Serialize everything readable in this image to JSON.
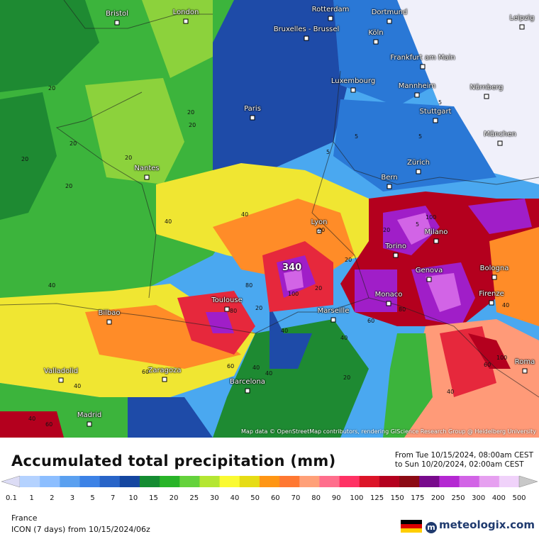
{
  "map": {
    "attribution": "Map data © OpenStreetMap contributors, rendering GIScience Research Group @ Heidelberg University",
    "cities": [
      "Bristol",
      "London",
      "Rotterdam",
      "Dortmund",
      "Leipzig",
      "Bruxelles - Brussel",
      "Köln",
      "Frankfurt am Main",
      "Luxembourg",
      "Mannheim",
      "Nürnberg",
      "Paris",
      "Stuttgart",
      "München",
      "Nantes",
      "Zürich",
      "Bern",
      "Lyon",
      "Milano",
      "Torino",
      "Genova",
      "Bologna",
      "Monaco",
      "Firenze",
      "Toulouse",
      "Marseille",
      "Bilbao",
      "Valladolid",
      "Zaragoza",
      "Barcelona",
      "Madrid",
      "Roma"
    ],
    "peak_label": "340",
    "contour_labels": [
      "20",
      "20",
      "20",
      "20",
      "20",
      "20",
      "20",
      "20",
      "20",
      "20",
      "40",
      "40",
      "40",
      "40",
      "40",
      "40",
      "40",
      "40",
      "40",
      "60",
      "60",
      "60",
      "60",
      "60",
      "80",
      "80",
      "80",
      "100",
      "100",
      "100",
      "5",
      "5",
      "5",
      "5",
      "5",
      "20",
      "40",
      "20",
      "20",
      "40"
    ]
  },
  "title": "Accumulated total precipitation (mm)",
  "period": {
    "from": "From Tue 10/15/2024, 08:00am CEST",
    "to": "to Sun 10/20/2024, 02:00am CEST"
  },
  "legend": {
    "ticks": [
      "0.1",
      "1",
      "2",
      "3",
      "5",
      "7",
      "10",
      "15",
      "20",
      "25",
      "30",
      "40",
      "50",
      "60",
      "70",
      "80",
      "90",
      "100",
      "125",
      "150",
      "175",
      "200",
      "250",
      "300",
      "400",
      "500"
    ],
    "colors": [
      "#dcdcf5",
      "#b4d2ff",
      "#8cbeff",
      "#5aa0f0",
      "#3c82e6",
      "#2864c8",
      "#1446a0",
      "#148c32",
      "#28b428",
      "#64d23c",
      "#b4e632",
      "#fafa32",
      "#e6dc14",
      "#ff9614",
      "#ff7832",
      "#ffa078",
      "#ff6e8c",
      "#ff3264",
      "#dc1428",
      "#b4001e",
      "#8c0a14",
      "#780a8c",
      "#b428d2",
      "#d264e6",
      "#e6a0f0",
      "#f0d2fa",
      "#c8c8c8"
    ]
  },
  "footer": {
    "region": "France",
    "model": "ICON (7 days)  from  10/15/2024/06z",
    "brand": "meteologix.com"
  },
  "colors": {
    "blue_dark": "#1e4ba8",
    "blue_mid": "#2a78d6",
    "blue_light": "#4aa8f0",
    "green_dark": "#1e8a32",
    "green": "#3cb43c",
    "green_light": "#8cd23c",
    "yellow": "#f0e632",
    "orange": "#ff8c28",
    "salmon": "#ff9a78",
    "red": "#e6283c",
    "crimson": "#b4001e",
    "purple": "#a01ec8",
    "violet": "#d264e6",
    "white": "#f0f0fa"
  }
}
